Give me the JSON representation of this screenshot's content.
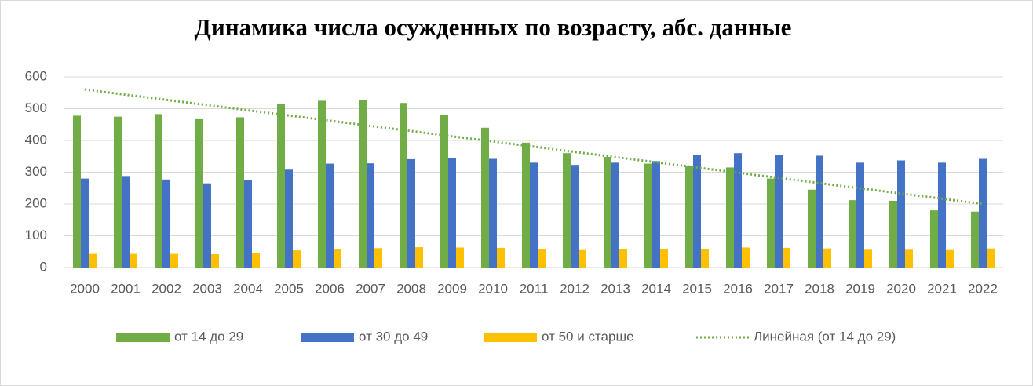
{
  "chart_data": {
    "type": "bar",
    "title": "Динамика числа осужденных по возрасту, абс. данные",
    "categories": [
      "2000",
      "2001",
      "2002",
      "2003",
      "2004",
      "2005",
      "2006",
      "2007",
      "2008",
      "2009",
      "2010",
      "2011",
      "2012",
      "2013",
      "2014",
      "2015",
      "2016",
      "2017",
      "2018",
      "2019",
      "2020",
      "2021",
      "2022"
    ],
    "series": [
      {
        "name": "от 14 до 29",
        "color": "#70ad47",
        "values": [
          478,
          475,
          483,
          467,
          473,
          515,
          525,
          527,
          518,
          480,
          440,
          393,
          360,
          348,
          327,
          320,
          315,
          280,
          245,
          212,
          210,
          180,
          176
        ],
        "trendline": {
          "type": "linear",
          "name": "Линейная (от 14 до 29)",
          "color": "#70ad47"
        }
      },
      {
        "name": "от 30 до 49",
        "color": "#4472c4",
        "values": [
          280,
          288,
          277,
          265,
          274,
          308,
          327,
          328,
          341,
          345,
          342,
          330,
          323,
          330,
          335,
          355,
          360,
          355,
          352,
          330,
          337,
          330,
          342
        ]
      },
      {
        "name": "от 50 и старше",
        "color": "#ffc000",
        "values": [
          43,
          43,
          43,
          42,
          46,
          54,
          57,
          61,
          64,
          63,
          62,
          57,
          55,
          57,
          57,
          57,
          63,
          62,
          60,
          56,
          56,
          55,
          60
        ]
      }
    ],
    "ylim": [
      0,
      600
    ],
    "yticks": [
      0,
      100,
      200,
      300,
      400,
      500,
      600
    ],
    "grid": true,
    "legend": "bottom"
  }
}
